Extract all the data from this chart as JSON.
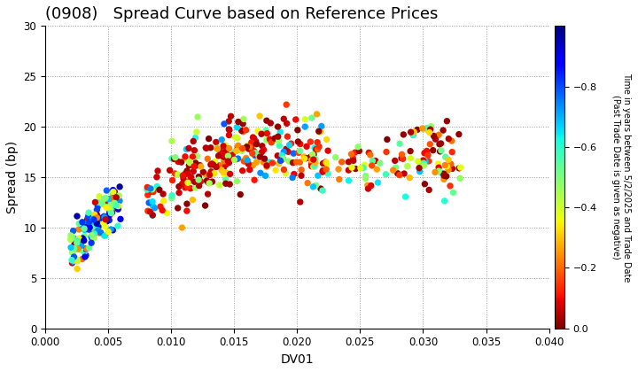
{
  "title": "(0908)   Spread Curve based on Reference Prices",
  "xlabel": "DV01",
  "ylabel": "Spread (bp)",
  "xlim": [
    0.0,
    0.04
  ],
  "ylim": [
    0,
    30
  ],
  "xticks": [
    0.0,
    0.005,
    0.01,
    0.015,
    0.02,
    0.025,
    0.03,
    0.035,
    0.04
  ],
  "yticks": [
    0,
    5,
    10,
    15,
    20,
    25,
    30
  ],
  "colorbar_label": "Time in years between 5/2/2025 and Trade Date\n(Past Trade Date is given as negative)",
  "cmap": "jet",
  "vmin": -1.0,
  "vmax": 0.0,
  "colorbar_ticks": [
    0.0,
    -0.2,
    -0.4,
    -0.6,
    -0.8
  ],
  "title_fontsize": 13,
  "axis_fontsize": 10,
  "marker_size": 28,
  "background_color": "#ffffff",
  "grid_color": "#999999",
  "grid_style": "dotted"
}
